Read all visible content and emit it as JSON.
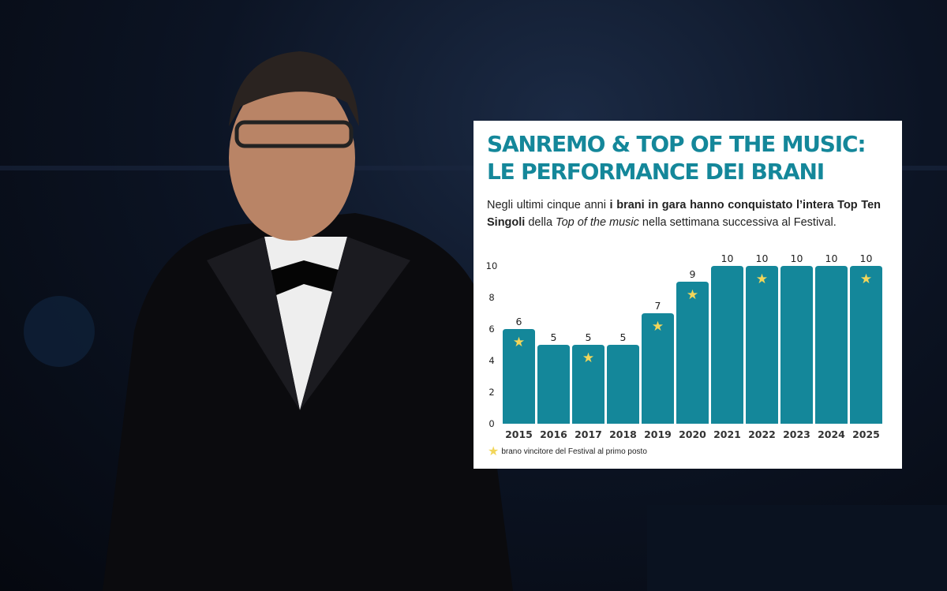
{
  "chart_data": {
    "type": "bar",
    "title": "SANREMO & TOP OF THE MUSIC: LE PERFORMANCE DEI BRANI",
    "subtitle_parts": [
      {
        "text": "Negli ultimi cinque anni ",
        "style": "normal"
      },
      {
        "text": "i brani in gara hanno conquistato l’intera Top Ten Singoli",
        "style": "bold"
      },
      {
        "text": " della ",
        "style": "normal"
      },
      {
        "text": "Top of the music",
        "style": "italic"
      },
      {
        "text": " nella settimana successiva al Festival.",
        "style": "normal"
      }
    ],
    "categories": [
      "2015",
      "2016",
      "2017",
      "2018",
      "2019",
      "2020",
      "2021",
      "2022",
      "2023",
      "2024",
      "2025"
    ],
    "values": [
      6,
      5,
      5,
      5,
      7,
      9,
      10,
      10,
      10,
      10,
      10
    ],
    "winner_first": [
      true,
      false,
      true,
      false,
      true,
      true,
      false,
      true,
      false,
      false,
      true
    ],
    "yticks": [
      0,
      2,
      4,
      6,
      8,
      10
    ],
    "ylim": [
      0,
      10
    ],
    "grid": false,
    "legend": {
      "label": "brano vincitore del Festival al primo posto",
      "placement": "bottom-left",
      "icon": "star-icon"
    },
    "colors": {
      "bar": "#14879a",
      "star": "#f2d65a",
      "title": "#14879a"
    }
  }
}
